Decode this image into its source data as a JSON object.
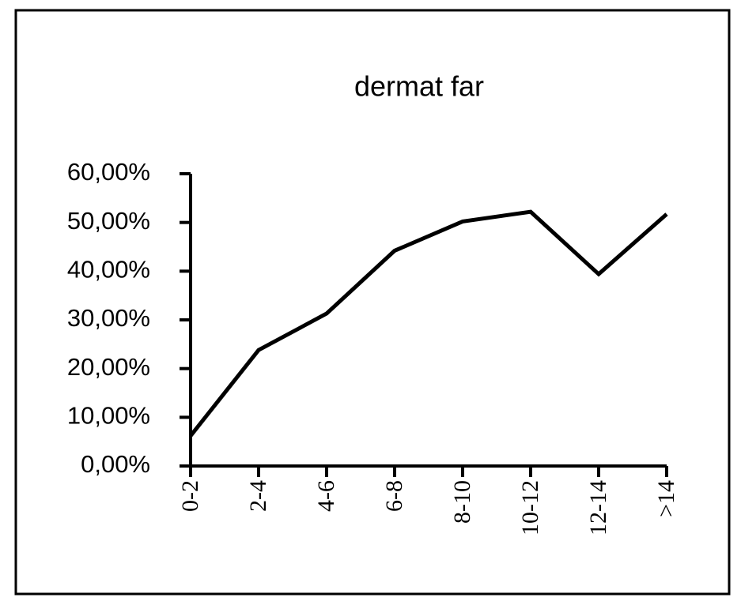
{
  "chart_data": {
    "type": "line",
    "title": "dermat far",
    "categories": [
      "0-2",
      "2-4",
      "4-6",
      "6-8",
      "8-10",
      "10-12",
      "12-14",
      ">14"
    ],
    "values": [
      6.2,
      23.8,
      31.3,
      44.2,
      50.2,
      52.2,
      39.4,
      51.7
    ],
    "color": "#000000",
    "ylim": [
      0,
      60
    ],
    "yticks": [
      {
        "value": 0,
        "label": "0,00%"
      },
      {
        "value": 10,
        "label": "10,00%"
      },
      {
        "value": 20,
        "label": "20,00%"
      },
      {
        "value": 30,
        "label": "30,00%"
      },
      {
        "value": 40,
        "label": "40,00%"
      },
      {
        "value": 50,
        "label": "50,00%"
      },
      {
        "value": 60,
        "label": "60,00%"
      }
    ]
  }
}
